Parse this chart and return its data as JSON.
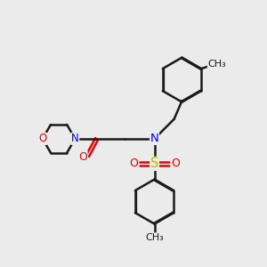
{
  "bg_color": "#ebebeb",
  "bond_color": "#1a1a1a",
  "bond_width": 1.8,
  "dbo": 0.035,
  "atom_colors": {
    "N": "#0000ee",
    "O": "#ee0000",
    "S": "#bbbb00",
    "C": "#1a1a1a"
  },
  "font_size": 8.5,
  "fig_size": [
    3.0,
    3.0
  ],
  "dpi": 100,
  "xlim": [
    0.0,
    10.0
  ],
  "ylim": [
    0.5,
    10.5
  ]
}
